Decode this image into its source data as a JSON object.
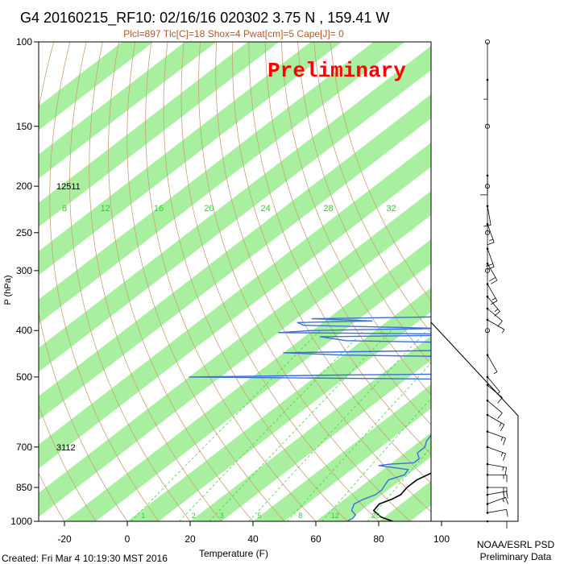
{
  "header": {
    "title": "G4 20160215_RF10: 02/16/16 020302   3.75 N , 159.41 W",
    "subtitle": "Plcl=897 Tlc[C]=18 Shox=4 Pwat[cm]=5 Cape[J]= 0",
    "watermark": "Preliminary"
  },
  "footer": {
    "created": "Created: Fri Mar  4 10:19:30 MST 2016",
    "credit_line1": "NOAA/ESRL PSD",
    "credit_line2": "Preliminary Data"
  },
  "colors": {
    "temperature": "#000000",
    "dewpoint": "#3a6fd8",
    "band": "#a8f0a0",
    "dry_adiabat": "#c8a078",
    "mixing_ratio": "#33cc33",
    "watermark": "#ff0000"
  },
  "chart_data": {
    "type": "skew-t",
    "xlabel": "Temperature (F)",
    "ylabel": "P (hPa)",
    "x_ticks": [
      -20,
      0,
      20,
      40,
      60,
      80,
      100
    ],
    "y_ticks": [
      100,
      150,
      200,
      250,
      300,
      400,
      500,
      700,
      850,
      1000
    ],
    "xlim": [
      -30,
      110
    ],
    "ylim": [
      1000,
      100
    ],
    "height_labels": [
      {
        "p": 200,
        "text": "12511"
      },
      {
        "p": 700,
        "text": "3112"
      }
    ],
    "mixing_ratio_labels_top": [
      {
        "t": -20,
        "text": "8"
      },
      {
        "t": -7,
        "text": "12"
      },
      {
        "t": 10,
        "text": "16"
      },
      {
        "t": 26,
        "text": "20"
      },
      {
        "t": 44,
        "text": "24"
      },
      {
        "t": 64,
        "text": "28"
      },
      {
        "t": 84,
        "text": "32"
      }
    ],
    "mixing_ratio_labels_bottom": [
      {
        "t": 2,
        "text": "1"
      },
      {
        "t": 18,
        "text": "2"
      },
      {
        "t": 27,
        "text": "3"
      },
      {
        "t": 39,
        "text": "5"
      },
      {
        "t": 52,
        "text": "8"
      },
      {
        "t": 63,
        "text": "12"
      },
      {
        "t": 76,
        "text": "20"
      }
    ],
    "temperature": {
      "p": [
        1000,
        980,
        950,
        920,
        900,
        880,
        850,
        820,
        790,
        760,
        740,
        720,
        700,
        680,
        660,
        640,
        620,
        600,
        580,
        560,
        540,
        520,
        500,
        480,
        460,
        440,
        420,
        400,
        380,
        360,
        340,
        320,
        300,
        280,
        260,
        240,
        220,
        200,
        185,
        175
      ],
      "t": [
        84.5,
        79,
        74,
        73,
        75,
        76,
        75,
        75,
        77,
        78,
        77.5,
        76,
        76,
        75.5,
        74.5,
        73,
        72.5,
        71.5,
        71,
        71.5,
        71,
        70.5,
        69,
        66,
        67,
        66.5,
        63,
        62.5,
        59,
        57,
        53,
        52,
        47,
        45,
        43,
        40,
        38,
        35.5,
        33,
        32
      ]
    },
    "dewpoint": {
      "p": [
        1000,
        985,
        970,
        950,
        920,
        900,
        880,
        860,
        840,
        820,
        800,
        780,
        765,
        760,
        755,
        740,
        720,
        700,
        680,
        660,
        640,
        620,
        600,
        580,
        560,
        545,
        540,
        530,
        520,
        510,
        505,
        500,
        498,
        495,
        492,
        490,
        488,
        480,
        470,
        460,
        455,
        450,
        445,
        440,
        435,
        425,
        420,
        412,
        408,
        404,
        400,
        396,
        390,
        385,
        382,
        378,
        374,
        360,
        350,
        340,
        330,
        320,
        310,
        300,
        290,
        285,
        280,
        270,
        260,
        250,
        240,
        230,
        220,
        210,
        200
      ],
      "t": [
        70,
        70.5,
        70,
        67,
        65,
        66,
        68,
        68,
        67,
        66,
        69,
        68,
        57,
        60,
        67,
        67,
        64,
        64,
        62,
        61,
        63,
        63,
        61,
        63,
        60,
        58,
        60,
        50,
        48,
        48,
        40,
        -40,
        -20,
        10,
        60,
        62,
        60,
        58,
        62,
        55,
        52,
        0,
        -20,
        30,
        36,
        42,
        -5,
        -15,
        45,
        -30,
        -20,
        20,
        -25,
        -28,
        -5,
        -25,
        20,
        38,
        30,
        36,
        32,
        37,
        27,
        33,
        28,
        35,
        26,
        33,
        28,
        30,
        28,
        29,
        22,
        18,
        12
      ]
    },
    "wind_barbs": [
      {
        "p": 1000,
        "speed": 10,
        "dir": 90
      },
      {
        "p": 960,
        "speed": 10,
        "dir": 80
      },
      {
        "p": 920,
        "speed": 15,
        "dir": 70
      },
      {
        "p": 880,
        "speed": 20,
        "dir": 80
      },
      {
        "p": 850,
        "speed": 20,
        "dir": 90
      },
      {
        "p": 800,
        "speed": 15,
        "dir": 90
      },
      {
        "p": 760,
        "speed": 15,
        "dir": 100
      },
      {
        "p": 700,
        "speed": 15,
        "dir": 110
      },
      {
        "p": 650,
        "speed": 15,
        "dir": 110
      },
      {
        "p": 600,
        "speed": 15,
        "dir": 120
      },
      {
        "p": 560,
        "speed": 10,
        "dir": 130
      },
      {
        "p": 520,
        "speed": 10,
        "dir": 130
      },
      {
        "p": 500,
        "speed": 5,
        "dir": 140
      },
      {
        "p": 450,
        "speed": 5,
        "dir": 150
      },
      {
        "p": 400,
        "speed": 0,
        "dir": 0
      },
      {
        "p": 380,
        "speed": 5,
        "dir": 120
      },
      {
        "p": 360,
        "speed": 10,
        "dir": 130
      },
      {
        "p": 340,
        "speed": 15,
        "dir": 140
      },
      {
        "p": 320,
        "speed": 15,
        "dir": 150
      },
      {
        "p": 300,
        "speed": 0,
        "dir": 0
      },
      {
        "p": 290,
        "speed": 20,
        "dir": 150
      },
      {
        "p": 270,
        "speed": 20,
        "dir": 160
      },
      {
        "p": 250,
        "speed": 0,
        "dir": 0
      },
      {
        "p": 240,
        "speed": 15,
        "dir": 160
      },
      {
        "p": 220,
        "speed": 10,
        "dir": 170
      },
      {
        "p": 200,
        "speed": 0,
        "dir": 0
      },
      {
        "p": 190,
        "speed": 10,
        "dir": 180
      },
      {
        "p": 150,
        "speed": 0,
        "dir": 0
      },
      {
        "p": 120,
        "speed": 5,
        "dir": 180
      },
      {
        "p": 100,
        "speed": 0,
        "dir": 0
      }
    ]
  }
}
